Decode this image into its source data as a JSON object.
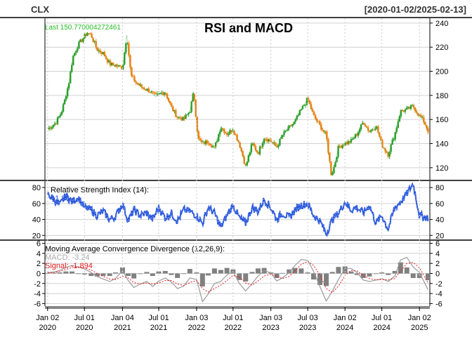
{
  "header": {
    "symbol": "CLX",
    "date_range": "[2020-01-02/2025-02-13]"
  },
  "colors": {
    "up": "#2ca02c",
    "down": "#ff7f0e",
    "rsi": "#1f4fd8",
    "macd_hist": "#808080",
    "signal": "#e31a1c",
    "last_label": "#22bb22",
    "panel_border": "#000000",
    "grid": "#d0d0d0"
  },
  "chart_data": [
    {
      "type": "line",
      "panel": "price",
      "title": "RSI and MACD",
      "last_label": "Last 150.770004272461",
      "last_value": 150.770004272461,
      "ylim": [
        110,
        244
      ],
      "yticks": [
        120,
        140,
        160,
        180,
        200,
        220,
        240
      ],
      "grid": true,
      "x": [
        "2020-01-02",
        "2020-02-10",
        "2020-03-10",
        "2020-03-23",
        "2020-04-15",
        "2020-05-05",
        "2020-06-01",
        "2020-07-15",
        "2020-08-03",
        "2020-09-01",
        "2020-10-01",
        "2020-11-02",
        "2020-12-01",
        "2021-01-04",
        "2021-01-25",
        "2021-02-15",
        "2021-03-15",
        "2021-04-15",
        "2021-05-17",
        "2021-06-15",
        "2021-07-15",
        "2021-08-02",
        "2021-09-01",
        "2021-10-01",
        "2021-11-01",
        "2021-12-01",
        "2021-12-20",
        "2022-01-10",
        "2022-02-01",
        "2022-03-01",
        "2022-04-01",
        "2022-05-02",
        "2022-06-01",
        "2022-07-01",
        "2022-08-01",
        "2022-09-01",
        "2022-10-03",
        "2022-11-01",
        "2022-12-01",
        "2023-01-03",
        "2023-02-01",
        "2023-03-01",
        "2023-04-03",
        "2023-05-01",
        "2023-06-01",
        "2023-07-03",
        "2023-08-01",
        "2023-09-01",
        "2023-10-02",
        "2023-10-27",
        "2023-11-10",
        "2023-12-01",
        "2024-01-02",
        "2024-02-01",
        "2024-03-01",
        "2024-04-01",
        "2024-05-01",
        "2024-06-03",
        "2024-07-01",
        "2024-08-01",
        "2024-09-03",
        "2024-10-01",
        "2024-11-01",
        "2024-12-02",
        "2025-01-02",
        "2025-01-22",
        "2025-02-13"
      ],
      "values": [
        152,
        157,
        166,
        174,
        190,
        212,
        222,
        232,
        230,
        218,
        215,
        206,
        205,
        203,
        230,
        196,
        190,
        186,
        184,
        179,
        182,
        183,
        170,
        162,
        160,
        167,
        183,
        144,
        140,
        142,
        136,
        154,
        148,
        152,
        140,
        121,
        140,
        132,
        145,
        142,
        137,
        147,
        153,
        158,
        168,
        177,
        163,
        155,
        147,
        114,
        121,
        137,
        140,
        142,
        148,
        158,
        150,
        155,
        139,
        131,
        148,
        167,
        168,
        171,
        163,
        159,
        150.77
      ]
    },
    {
      "type": "line",
      "panel": "rsi",
      "title": "Relative Strength Index (14):",
      "last_label": "41.86",
      "ylim": [
        15,
        88
      ],
      "yticks": [
        20,
        40,
        60,
        80
      ],
      "grid": true,
      "x": [
        "2020-01-02",
        "2020-02-03",
        "2020-03-02",
        "2020-04-01",
        "2020-05-01",
        "2020-06-01",
        "2020-07-01",
        "2020-08-03",
        "2020-09-01",
        "2020-10-01",
        "2020-11-02",
        "2020-12-01",
        "2021-01-04",
        "2021-02-01",
        "2021-03-01",
        "2021-04-01",
        "2021-05-03",
        "2021-06-01",
        "2021-07-01",
        "2021-08-02",
        "2021-09-01",
        "2021-10-01",
        "2021-11-01",
        "2021-12-01",
        "2022-01-03",
        "2022-02-01",
        "2022-03-01",
        "2022-04-01",
        "2022-05-02",
        "2022-06-01",
        "2022-07-01",
        "2022-08-01",
        "2022-09-01",
        "2022-10-03",
        "2022-11-01",
        "2022-12-01",
        "2023-01-03",
        "2023-02-01",
        "2023-03-01",
        "2023-04-03",
        "2023-05-01",
        "2023-06-01",
        "2023-07-03",
        "2023-08-01",
        "2023-09-01",
        "2023-10-02",
        "2023-11-01",
        "2023-12-01",
        "2024-01-02",
        "2024-02-01",
        "2024-03-01",
        "2024-04-01",
        "2024-05-01",
        "2024-06-03",
        "2024-07-01",
        "2024-08-01",
        "2024-09-03",
        "2024-10-01",
        "2024-11-01",
        "2024-12-02",
        "2025-01-02",
        "2025-02-13"
      ],
      "values": [
        72,
        65,
        58,
        70,
        62,
        68,
        55,
        52,
        45,
        50,
        40,
        44,
        60,
        38,
        52,
        45,
        48,
        40,
        55,
        42,
        48,
        38,
        52,
        50,
        45,
        35,
        55,
        48,
        30,
        45,
        58,
        42,
        35,
        55,
        50,
        65,
        55,
        40,
        48,
        42,
        52,
        58,
        60,
        45,
        38,
        22,
        40,
        48,
        62,
        52,
        55,
        48,
        58,
        35,
        45,
        28,
        55,
        62,
        72,
        85,
        45,
        42
      ]
    },
    {
      "type": "line",
      "panel": "macd",
      "title": "Moving Average Convergence Divergence (12,26,9):",
      "macd_label": "MACD: -3.24",
      "signal_label": "Signal: -1.894",
      "ylim": [
        -6.5,
        6.5
      ],
      "yticks": [
        -6,
        -4,
        -2,
        0,
        2,
        4,
        6
      ],
      "grid": true,
      "x": [
        "2020-01-02",
        "2020-02-03",
        "2020-03-02",
        "2020-04-01",
        "2020-05-01",
        "2020-06-01",
        "2020-07-01",
        "2020-08-03",
        "2020-09-01",
        "2020-10-01",
        "2020-11-02",
        "2020-12-01",
        "2021-01-04",
        "2021-02-01",
        "2021-03-01",
        "2021-04-01",
        "2021-05-03",
        "2021-06-01",
        "2021-07-01",
        "2021-08-02",
        "2021-09-01",
        "2021-10-01",
        "2021-11-01",
        "2021-12-01",
        "2022-01-03",
        "2022-02-01",
        "2022-03-01",
        "2022-04-01",
        "2022-05-02",
        "2022-06-01",
        "2022-07-01",
        "2022-08-01",
        "2022-09-01",
        "2022-10-03",
        "2022-11-01",
        "2022-12-01",
        "2023-01-03",
        "2023-02-01",
        "2023-03-01",
        "2023-04-03",
        "2023-05-01",
        "2023-06-01",
        "2023-07-03",
        "2023-08-01",
        "2023-09-01",
        "2023-10-02",
        "2023-11-01",
        "2023-12-01",
        "2024-01-02",
        "2024-02-01",
        "2024-03-01",
        "2024-04-01",
        "2024-05-01",
        "2024-06-03",
        "2024-07-01",
        "2024-08-01",
        "2024-09-03",
        "2024-10-01",
        "2024-11-01",
        "2024-12-02",
        "2025-01-02",
        "2025-02-13"
      ],
      "series": [
        {
          "name": "MACD",
          "values": [
            0.2,
            0.3,
            0.6,
            1.2,
            1.6,
            1.3,
            0.9,
            0.2,
            -0.6,
            -1.1,
            -1.6,
            -1.0,
            0.6,
            -1.4,
            -2.8,
            -2.1,
            -1.6,
            -2.6,
            -1.5,
            -0.9,
            -1.7,
            -3.0,
            -2.5,
            -0.9,
            -1.2,
            -5.6,
            -4.1,
            -2.0,
            -1.6,
            -0.3,
            0.4,
            -2.0,
            -3.5,
            -2.0,
            -0.5,
            0.6,
            0.1,
            -1.5,
            -0.9,
            0.2,
            1.6,
            2.8,
            2.6,
            0.4,
            -2.6,
            -5.5,
            -3.5,
            -1.2,
            1.0,
            1.0,
            0.2,
            -1.3,
            -1.6,
            -1.3,
            -1.0,
            -1.6,
            -0.5,
            2.7,
            3.2,
            1.3,
            0.2,
            -3.24
          ]
        },
        {
          "name": "Signal",
          "values": [
            0.1,
            0.2,
            0.4,
            0.8,
            1.2,
            1.3,
            1.1,
            0.7,
            0.0,
            -0.6,
            -1.1,
            -1.2,
            -0.6,
            -0.9,
            -1.8,
            -2.1,
            -1.9,
            -2.1,
            -1.9,
            -1.4,
            -1.4,
            -2.1,
            -2.4,
            -1.8,
            -1.4,
            -3.0,
            -3.7,
            -3.0,
            -2.3,
            -1.4,
            -0.4,
            -0.7,
            -1.9,
            -2.3,
            -1.5,
            -0.5,
            -0.1,
            -0.6,
            -1.0,
            -0.6,
            0.5,
            1.8,
            2.4,
            1.6,
            -0.3,
            -3.0,
            -3.8,
            -2.5,
            -0.4,
            0.6,
            0.5,
            -0.4,
            -1.0,
            -1.3,
            -1.2,
            -1.3,
            -1.0,
            0.5,
            2.0,
            2.2,
            1.1,
            -1.894
          ]
        }
      ]
    }
  ],
  "x_axis": {
    "ticks": [
      {
        "date": "2020-01-02",
        "label": "Jan 02\n2020"
      },
      {
        "date": "2020-07-01",
        "label": "Jul 01\n2020"
      },
      {
        "date": "2021-01-04",
        "label": "Jan 04\n2021"
      },
      {
        "date": "2021-07-01",
        "label": "Jul 01\n2021"
      },
      {
        "date": "2022-01-03",
        "label": "Jan 03\n2022"
      },
      {
        "date": "2022-07-01",
        "label": "Jul 01\n2022"
      },
      {
        "date": "2023-01-03",
        "label": "Jan 03\n2023"
      },
      {
        "date": "2023-07-03",
        "label": "Jul 03\n2023"
      },
      {
        "date": "2024-01-02",
        "label": "Jan 02\n2024"
      },
      {
        "date": "2024-07-01",
        "label": "Jul 01\n2024"
      },
      {
        "date": "2025-01-02",
        "label": "Jan 02\n2025"
      }
    ]
  }
}
